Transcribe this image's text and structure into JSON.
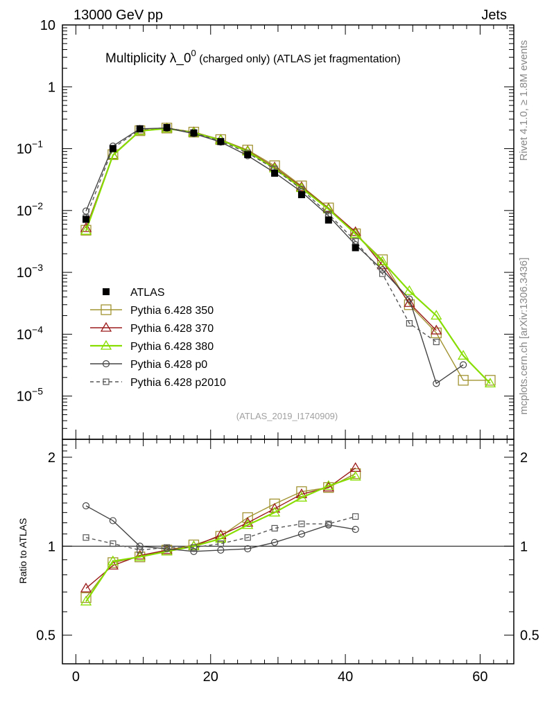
{
  "header": {
    "left": "13000 GeV pp",
    "right": "Jets",
    "title_main": "Multiplicity λ_0",
    "title_sup": "0",
    "title_sub": " (charged only) (ATLAS jet fragmentation)",
    "side_top": "Rivet 4.1.0, ≥ 1.8M events",
    "side_bottom": "mcplots.cern.ch [arXiv:1306.3436]",
    "analysis_tag": "(ATLAS_2019_I1740909)"
  },
  "chart_data": [
    {
      "id": "main",
      "type": "line",
      "yscale": "log",
      "ylim": [
        2e-06,
        10
      ],
      "xlim": [
        -2,
        65
      ],
      "y_ticks": [
        {
          "value": 10,
          "label": "10"
        },
        {
          "value": 1,
          "label": "1"
        },
        {
          "value": 0.1,
          "label": "10",
          "exp": "−1"
        },
        {
          "value": 0.01,
          "label": "10",
          "exp": "−2"
        },
        {
          "value": 0.001,
          "label": "10",
          "exp": "−3"
        },
        {
          "value": 0.0001,
          "label": "10",
          "exp": "−4"
        },
        {
          "value": 1e-05,
          "label": "10",
          "exp": "−5"
        }
      ],
      "x": [
        1.5,
        5.5,
        9.5,
        13.5,
        17.5,
        21.5,
        25.5,
        29.5,
        33.5,
        37.5,
        41.5,
        45.5,
        49.5,
        53.5,
        57.5,
        61.5
      ],
      "series": [
        {
          "name": "ATLAS",
          "color": "#000000",
          "marker": "filled-square",
          "line": "none",
          "values": [
            0.0072,
            0.1,
            0.21,
            0.22,
            0.18,
            0.13,
            0.08,
            0.04,
            0.018,
            0.007,
            0.0025,
            null,
            null,
            null,
            null,
            null
          ]
        },
        {
          "name": "Pythia 6.428 350",
          "color": "#a19331",
          "marker": "open-square",
          "line": "solid",
          "values": [
            0.0048,
            0.08,
            0.195,
            0.215,
            0.185,
            0.14,
            0.095,
            0.053,
            0.025,
            0.011,
            0.0042,
            0.0016,
            0.0003,
            0.000105,
            1.8e-05,
            1.8e-05
          ]
        },
        {
          "name": "Pythia 6.428 370",
          "color": "#9b1b1b",
          "marker": "open-triangle",
          "line": "solid",
          "values": [
            0.0052,
            0.079,
            0.196,
            0.214,
            0.185,
            0.14,
            0.092,
            0.05,
            0.024,
            0.0108,
            0.0045,
            0.0013,
            0.00032,
            0.000115,
            null,
            null
          ]
        },
        {
          "name": "Pythia 6.428 380",
          "color": "#88dd00",
          "marker": "open-triangle",
          "line": "solid",
          "values": [
            0.0047,
            0.078,
            0.193,
            0.212,
            0.182,
            0.138,
            0.09,
            0.048,
            0.023,
            0.0105,
            0.0042,
            0.0015,
            0.0005,
            0.0002,
            4.5e-05,
            1.6e-05
          ]
        },
        {
          "name": "Pythia 6.428 p0",
          "color": "#444444",
          "marker": "open-circle",
          "line": "solid",
          "values": [
            0.0098,
            0.11,
            0.21,
            0.215,
            0.175,
            0.128,
            0.077,
            0.041,
            0.02,
            0.0082,
            0.0028,
            0.0011,
            0.00037,
            1.6e-05,
            3.2e-05,
            null
          ]
        },
        {
          "name": "Pythia 6.428 p2010",
          "color": "#555555",
          "marker": "open-square-small",
          "line": "dashed",
          "values": [
            0.0077,
            0.102,
            0.205,
            0.218,
            0.18,
            0.132,
            0.085,
            0.047,
            0.022,
            0.0088,
            0.0032,
            0.00095,
            0.00015,
            7.5e-05,
            null,
            null
          ]
        }
      ]
    },
    {
      "id": "ratio",
      "type": "line",
      "yscale": "log",
      "ylim": [
        0.4,
        2.3
      ],
      "xlim": [
        -2,
        65
      ],
      "ylabel": "Ratio to ATLAS",
      "y_ticks": [
        {
          "value": 2,
          "label": "2"
        },
        {
          "value": 1,
          "label": "1"
        },
        {
          "value": 0.5,
          "label": "0.5"
        }
      ],
      "x_ticks": [
        {
          "value": 0,
          "label": "0"
        },
        {
          "value": 20,
          "label": "20"
        },
        {
          "value": 40,
          "label": "40"
        },
        {
          "value": 60,
          "label": "60"
        }
      ],
      "x": [
        1.5,
        5.5,
        9.5,
        13.5,
        17.5,
        21.5,
        25.5,
        29.5,
        33.5,
        37.5,
        41.5
      ],
      "series": [
        {
          "name": "Pythia 6.428 350",
          "values": [
            0.67,
            0.88,
            0.92,
            0.97,
            1.01,
            1.08,
            1.25,
            1.39,
            1.53,
            1.58,
            1.76
          ]
        },
        {
          "name": "Pythia 6.428 370",
          "values": [
            0.72,
            0.86,
            0.93,
            0.97,
            1.0,
            1.09,
            1.2,
            1.34,
            1.5,
            1.58,
            1.84
          ]
        },
        {
          "name": "Pythia 6.428 380",
          "values": [
            0.65,
            0.89,
            0.92,
            0.96,
            1.0,
            1.06,
            1.18,
            1.3,
            1.46,
            1.6,
            1.72
          ]
        },
        {
          "name": "Pythia 6.428 p0",
          "values": [
            1.37,
            1.22,
            1.0,
            0.98,
            0.96,
            0.97,
            0.98,
            1.03,
            1.1,
            1.18,
            1.14
          ]
        },
        {
          "name": "Pythia 6.428 p2010",
          "values": [
            1.07,
            1.02,
            0.97,
            0.99,
            0.99,
            1.02,
            1.07,
            1.15,
            1.19,
            1.19,
            1.26
          ]
        }
      ]
    }
  ]
}
